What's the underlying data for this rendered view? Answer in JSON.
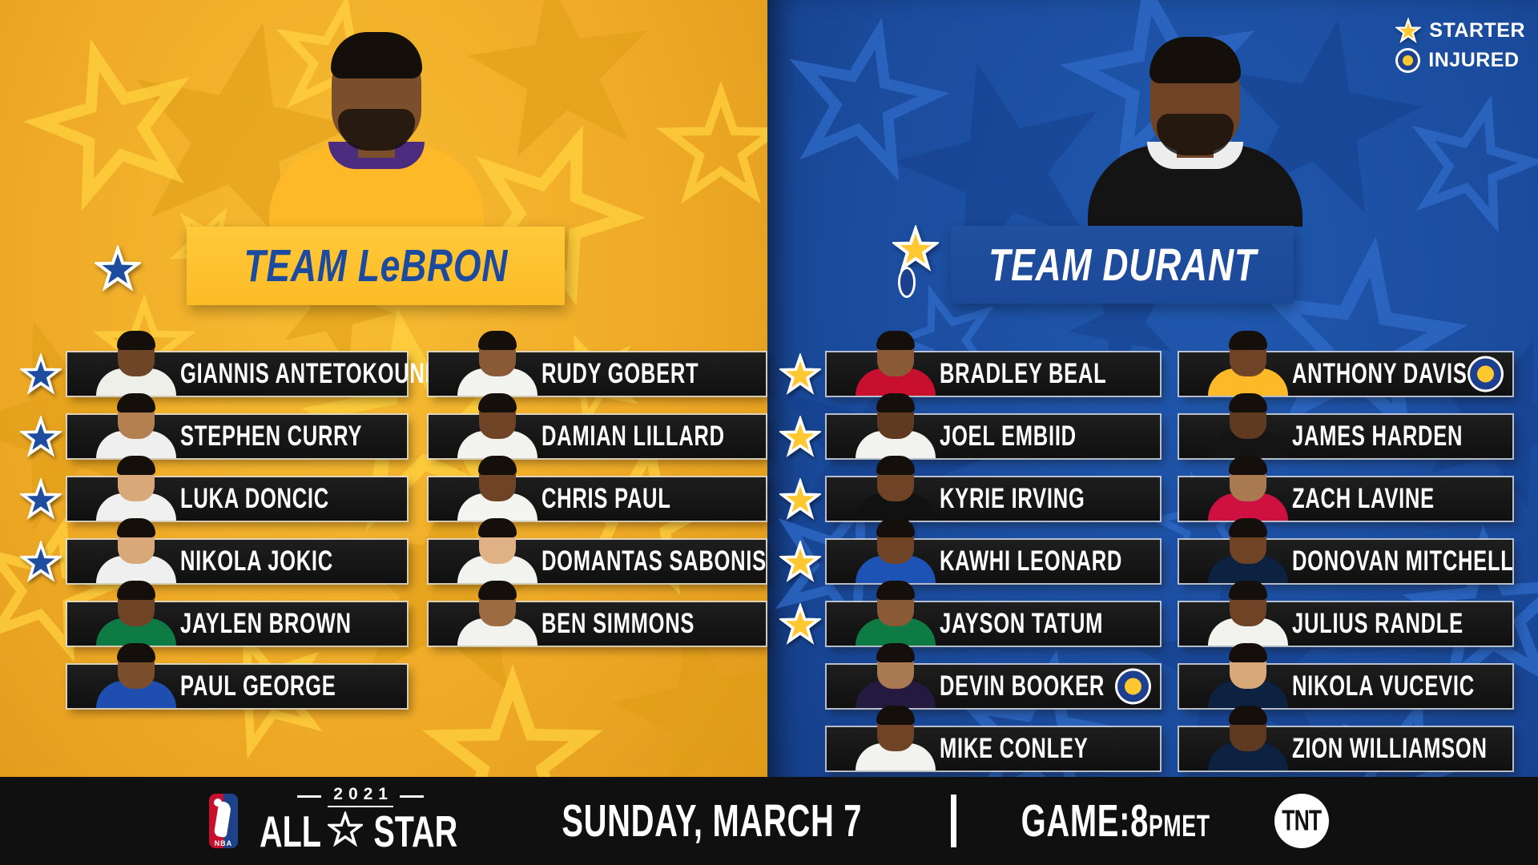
{
  "legend": {
    "starter_label": "STARTER",
    "injured_label": "INJURED"
  },
  "colors": {
    "gold_background": "#efaa27",
    "blue_background": "#1b4c9e",
    "banner_gold": "#fcbb26",
    "banner_blue": "#1c4898",
    "bar_black": "#141414",
    "starter_star_blue": "#1e4c9e",
    "starter_star_gold": "#ffc730",
    "injured_center_gold": "#ffc730",
    "injured_ring_navy": "#1c3f8f",
    "nba_red": "#c8102e",
    "nba_blue": "#1d428a"
  },
  "teams": [
    {
      "name": "TEAM LeBRON",
      "side": "gold",
      "captain_badges": {
        "starter": true,
        "injured": false
      },
      "captain_avatar": {
        "skin": "#7c4f2c",
        "jersey": "#fdb927",
        "trim": "#4b2c7f"
      },
      "columns": [
        [
          {
            "name": "GIANNIS ANTETOKOUNMPO",
            "starter": true,
            "injured": false,
            "skin": "#6f4527",
            "jersey": "#efefea"
          },
          {
            "name": "STEPHEN CURRY",
            "starter": true,
            "injured": false,
            "skin": "#b5804f",
            "jersey": "#efefef"
          },
          {
            "name": "LUKA DONCIC",
            "starter": true,
            "injured": false,
            "skin": "#d9a878",
            "jersey": "#f0f0f0"
          },
          {
            "name": "NIKOLA JOKIC",
            "starter": true,
            "injured": false,
            "skin": "#d9a878",
            "jersey": "#efefef"
          },
          {
            "name": "JAYLEN BROWN",
            "starter": false,
            "injured": false,
            "skin": "#6e4326",
            "jersey": "#0e7a44"
          },
          {
            "name": "PAUL GEORGE",
            "starter": false,
            "injured": false,
            "skin": "#7c4f2c",
            "jersey": "#1e4fb0"
          }
        ],
        [
          {
            "name": "RUDY GOBERT",
            "starter": false,
            "injured": false,
            "skin": "#8a5a36",
            "jersey": "#f2f2ee"
          },
          {
            "name": "DAMIAN LILLARD",
            "starter": false,
            "injured": false,
            "skin": "#6e4326",
            "jersey": "#f2f2ee"
          },
          {
            "name": "CHRIS PAUL",
            "starter": false,
            "injured": false,
            "skin": "#6e4326",
            "jersey": "#f4f4f0"
          },
          {
            "name": "DOMANTAS SABONIS",
            "starter": false,
            "injured": false,
            "skin": "#e0b184",
            "jersey": "#f2f2ee"
          },
          {
            "name": "BEN SIMMONS",
            "starter": false,
            "injured": false,
            "skin": "#9c6b42",
            "jersey": "#f2f2ee"
          }
        ]
      ]
    },
    {
      "name": "TEAM DURANT",
      "side": "blue",
      "captain_badges": {
        "starter": true,
        "injured": true
      },
      "captain_avatar": {
        "skin": "#6e4326",
        "jersey": "#141414",
        "trim": "#ededed"
      },
      "columns": [
        [
          {
            "name": "BRADLEY BEAL",
            "starter": true,
            "injured": false,
            "skin": "#8a5a36",
            "jersey": "#c8102e"
          },
          {
            "name": "JOEL EMBIID",
            "starter": true,
            "injured": false,
            "skin": "#5f3a20",
            "jersey": "#f2f2ee"
          },
          {
            "name": "KYRIE IRVING",
            "starter": true,
            "injured": false,
            "skin": "#6e4326",
            "jersey": "#111111"
          },
          {
            "name": "KAWHI LEONARD",
            "starter": true,
            "injured": false,
            "skin": "#6e4326",
            "jersey": "#1d53b5"
          },
          {
            "name": "JAYSON TATUM",
            "starter": true,
            "injured": false,
            "skin": "#8a5a36",
            "jersey": "#0e7a44"
          },
          {
            "name": "DEVIN BOOKER",
            "starter": false,
            "injured": true,
            "skin": "#a97951",
            "jersey": "#241a3f"
          },
          {
            "name": "MIKE CONLEY",
            "starter": false,
            "injured": false,
            "skin": "#6e4326",
            "jersey": "#f2f2ee"
          }
        ],
        [
          {
            "name": "ANTHONY DAVIS",
            "starter": false,
            "injured": true,
            "skin": "#6e4326",
            "jersey": "#fdb927"
          },
          {
            "name": "JAMES HARDEN",
            "starter": false,
            "injured": false,
            "skin": "#5f3a20",
            "jersey": "#141414"
          },
          {
            "name": "ZACH LAVINE",
            "starter": false,
            "injured": false,
            "skin": "#a97951",
            "jersey": "#ce1141"
          },
          {
            "name": "DONOVAN MITCHELL",
            "starter": false,
            "injured": false,
            "skin": "#6e4326",
            "jersey": "#0d2240"
          },
          {
            "name": "JULIUS RANDLE",
            "starter": false,
            "injured": false,
            "skin": "#6e4326",
            "jersey": "#f2f2ee"
          },
          {
            "name": "NIKOLA VUCEVIC",
            "starter": false,
            "injured": false,
            "skin": "#d9a878",
            "jersey": "#0d2240"
          },
          {
            "name": "ZION WILLIAMSON",
            "starter": false,
            "injured": false,
            "skin": "#5f3a20",
            "jersey": "#0d2240"
          }
        ]
      ]
    }
  ],
  "footer": {
    "league": "NBA",
    "logo_all": "ALL",
    "logo_star_suffix": "STAR",
    "logo_year": "2021",
    "date": "SUNDAY, MARCH 7",
    "game_label": "GAME:",
    "game_hour": " 8",
    "game_meridiem": "PM",
    "game_space": " ",
    "game_tz": "ET",
    "network": "TNT"
  }
}
